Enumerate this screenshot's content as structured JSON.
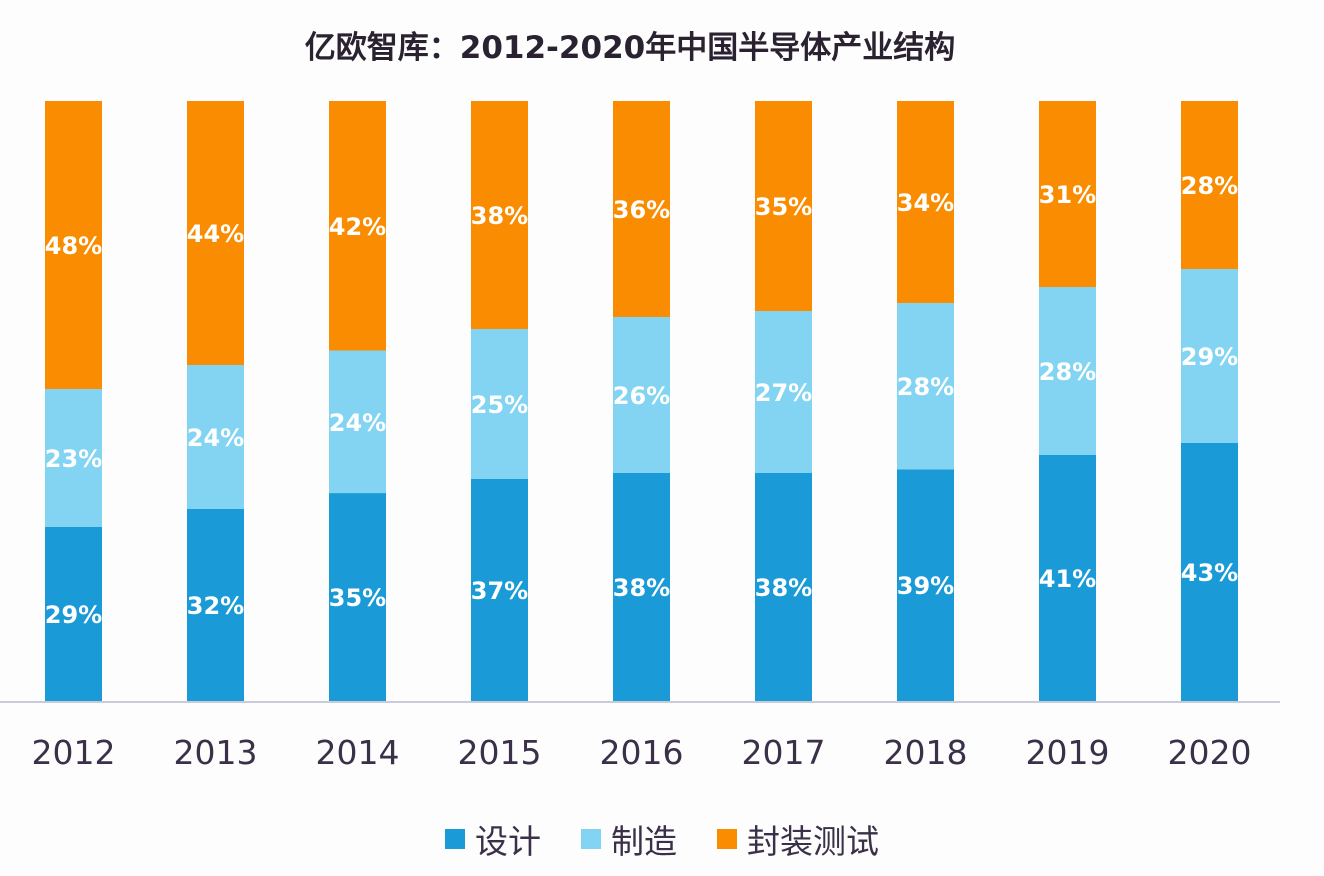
{
  "chart_data": {
    "type": "bar",
    "stacked": true,
    "title": "亿欧智库：2012-2020年中国半导体产业结构",
    "categories": [
      "2012",
      "2013",
      "2014",
      "2015",
      "2016",
      "2017",
      "2018",
      "2019",
      "2020"
    ],
    "series": [
      {
        "name": "设计",
        "color": "#1a9ad6",
        "values": [
          29,
          32,
          35,
          37,
          38,
          38,
          39,
          41,
          43
        ]
      },
      {
        "name": "制造",
        "color": "#82d4f2",
        "values": [
          23,
          24,
          24,
          25,
          26,
          27,
          28,
          28,
          29
        ]
      },
      {
        "name": "封装测试",
        "color": "#f98c00",
        "values": [
          48,
          44,
          42,
          38,
          36,
          35,
          34,
          31,
          28
        ]
      }
    ],
    "value_suffix": "%",
    "ylim": [
      0,
      100
    ],
    "grid": false,
    "legend_position": "bottom"
  }
}
